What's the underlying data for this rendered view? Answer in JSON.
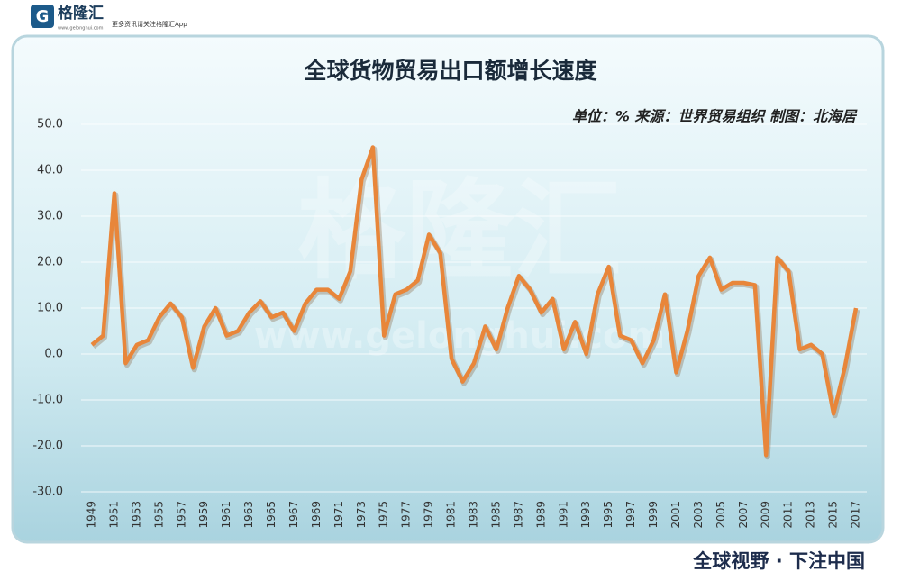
{
  "logo": {
    "name": "格隆汇",
    "slogan": "更多资讯请关注格隆汇App",
    "site": "www.gelonghui.com"
  },
  "watermark": {
    "name": "格隆汇",
    "site": "www.gelonghui.com"
  },
  "footer": "全球视野 · 下注中国",
  "chart_data": {
    "type": "line",
    "title": "全球货物贸易出口额增长速度",
    "subtitle": "单位：% 来源：世界贸易组织 制图：北海居",
    "categories": [
      "1949",
      null,
      "1951",
      null,
      "1953",
      null,
      "1955",
      null,
      "1957",
      null,
      "1959",
      null,
      "1961",
      null,
      "1963",
      null,
      "1965",
      null,
      "1967",
      null,
      "1969",
      null,
      "1971",
      null,
      "1973",
      null,
      "1975",
      null,
      "1977",
      null,
      "1979",
      null,
      "1981",
      null,
      "1983",
      null,
      "1985",
      null,
      "1987",
      null,
      "1989",
      null,
      "1991",
      null,
      "1993",
      null,
      "1995",
      null,
      "1997",
      null,
      "1999",
      null,
      "2001",
      null,
      "2003",
      null,
      "2005",
      null,
      "2007",
      null,
      "2009",
      null,
      "2011",
      null,
      "2013",
      null,
      "2015",
      null,
      "2017"
    ],
    "values": [
      2,
      4,
      35,
      -2,
      2,
      3,
      8,
      11,
      8,
      -3,
      6,
      10,
      4,
      5,
      9,
      11.5,
      8,
      9,
      5,
      11,
      14,
      14,
      12,
      18,
      38,
      45,
      4,
      13,
      14,
      16,
      26,
      22,
      -1,
      -6,
      -2,
      6,
      1,
      10,
      17,
      14,
      9,
      12,
      1,
      7,
      0,
      13,
      19,
      4,
      3,
      -2,
      3,
      13,
      -4,
      5,
      17,
      21,
      14,
      15.5,
      15.5,
      15,
      -22,
      21,
      18,
      1,
      2,
      0,
      -13,
      -3,
      10
    ],
    "color": "#e8863a",
    "ylim": [
      -30,
      50
    ],
    "yticks": [
      {
        "value": -30,
        "label": "-30.0"
      },
      {
        "value": -20,
        "label": "-20.0"
      },
      {
        "value": -10,
        "label": "-10.0"
      },
      {
        "value": 0,
        "label": "0.0"
      },
      {
        "value": 10,
        "label": "10.0"
      },
      {
        "value": 20,
        "label": "20.0"
      },
      {
        "value": 30,
        "label": "30.0"
      },
      {
        "value": 40,
        "label": "40.0"
      },
      {
        "value": 50,
        "label": "50.0"
      }
    ],
    "grid": true
  }
}
